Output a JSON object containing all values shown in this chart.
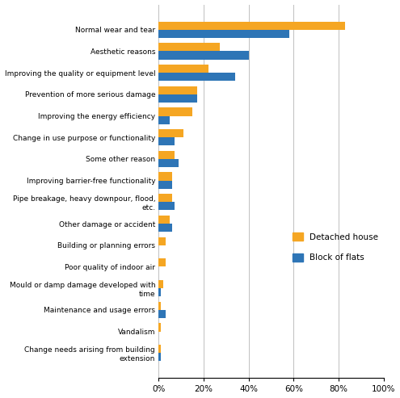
{
  "categories": [
    "Normal wear and tear",
    "Aesthetic reasons",
    "Improving the quality or equipment level",
    "Prevention of more serious damage",
    "Improving the energy efficiency",
    "Change in use purpose or functionality",
    "Some other reason",
    "Improving barrier-free functionality",
    "Pipe breakage, heavy downpour, flood,\netc.",
    "Other damage or accident",
    "Building or planning errors",
    "Poor quality of indoor air",
    "Mould or damp damage developed with\ntime",
    "Maintenance and usage errors",
    "Vandalism",
    "Change needs arising from building\nextension"
  ],
  "detached_house": [
    83,
    27,
    22,
    17,
    15,
    11,
    7,
    6,
    6,
    5,
    3,
    3,
    2,
    1,
    1,
    1
  ],
  "block_of_flats": [
    58,
    40,
    34,
    17,
    5,
    7,
    9,
    6,
    7,
    6,
    0,
    0,
    1,
    3,
    0,
    1
  ],
  "color_detached": "#f5a623",
  "color_block": "#2e75b6",
  "legend_labels": [
    "Detached house",
    "Block of flats"
  ],
  "xlim": [
    0,
    100
  ],
  "xticks": [
    0,
    20,
    40,
    60,
    80,
    100
  ],
  "xticklabels": [
    "0%",
    "20%",
    "40%",
    "60%",
    "80%",
    "100%"
  ],
  "background_color": "#ffffff",
  "grid_color": "#c0c0c0"
}
